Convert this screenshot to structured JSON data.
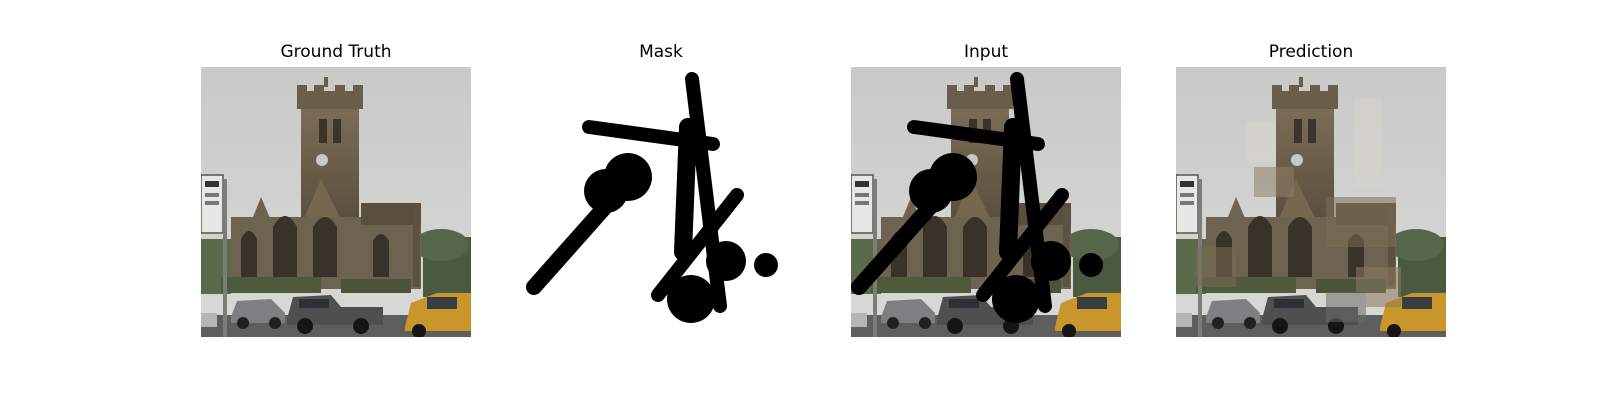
{
  "figure": {
    "panels": [
      {
        "id": "ground_truth",
        "title": "Ground Truth"
      },
      {
        "id": "mask",
        "title": "Mask"
      },
      {
        "id": "input",
        "title": "Input"
      },
      {
        "id": "prediction",
        "title": "Prediction"
      }
    ]
  },
  "colors": {
    "sky": "#cfd0cd",
    "stone": "#6f6350",
    "stone_dark": "#4b4234",
    "mask_stroke": "#000000",
    "car_yellow": "#c8962a"
  }
}
